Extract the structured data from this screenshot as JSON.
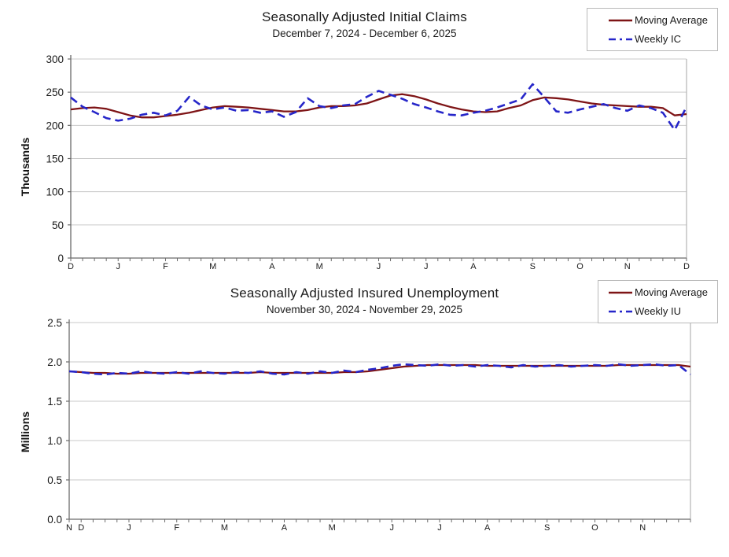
{
  "colors": {
    "moving_average": "#7e1416",
    "weekly": "#2626c9",
    "gridline": "#c9c9c9",
    "axis": "#6b6b6b",
    "plot_border_right": "#b5b5b5",
    "text": "#1a1a1a"
  },
  "chart_data": [
    {
      "type": "line",
      "title": "Seasonally Adjusted Initial Claims",
      "subtitle": "December 7, 2024 - December 6, 2025",
      "ylabel": "Thousands",
      "ylim": [
        0,
        300
      ],
      "yticks": [
        0,
        50,
        100,
        150,
        200,
        250,
        300
      ],
      "ytick_labels": [
        "0",
        "50",
        "100",
        "150",
        "200",
        "250",
        "300"
      ],
      "grid": "horizontal",
      "legend_position": "top-right",
      "weeks_total": 52,
      "x_month_labels": [
        "D",
        "J",
        "F",
        "M",
        "A",
        "M",
        "J",
        "J",
        "A",
        "S",
        "O",
        "N",
        "D"
      ],
      "x_month_week_positions": [
        0,
        4,
        8,
        12,
        17,
        21,
        26,
        30,
        34,
        39,
        43,
        47,
        52
      ],
      "series": [
        {
          "name": "Moving Average",
          "style": "solid",
          "values": [
            224,
            226,
            227,
            225,
            220,
            215,
            212,
            212,
            214,
            216,
            219,
            223,
            227,
            229,
            228,
            227,
            225,
            223,
            221,
            221,
            223,
            227,
            229,
            229,
            230,
            233,
            239,
            245,
            247,
            244,
            239,
            233,
            228,
            224,
            221,
            220,
            221,
            226,
            230,
            238,
            242,
            241,
            239,
            236,
            233,
            231,
            230,
            229,
            228,
            228,
            226,
            215,
            217
          ]
        },
        {
          "name": "Weekly IC",
          "style": "dashed",
          "values": [
            242,
            228,
            220,
            211,
            207,
            210,
            216,
            219,
            215,
            222,
            243,
            230,
            224,
            227,
            222,
            223,
            219,
            221,
            213,
            220,
            241,
            229,
            226,
            230,
            232,
            243,
            252,
            246,
            240,
            232,
            227,
            221,
            216,
            215,
            219,
            222,
            227,
            233,
            239,
            262,
            242,
            221,
            219,
            224,
            228,
            232,
            226,
            222,
            230,
            226,
            219,
            193,
            228
          ]
        }
      ]
    },
    {
      "type": "line",
      "title": "Seasonally Adjusted Insured Unemployment",
      "subtitle": "November 30, 2024 - November 29, 2025",
      "ylabel": "Millions",
      "ylim": [
        0,
        2.5
      ],
      "yticks": [
        0,
        0.5,
        1.0,
        1.5,
        2.0,
        2.5
      ],
      "ytick_labels": [
        "0.0",
        "0.5",
        "1.0",
        "1.5",
        "2.0",
        "2.5"
      ],
      "grid": "horizontal",
      "legend_position": "top-right",
      "weeks_total": 52,
      "x_month_labels": [
        "N",
        "D",
        "J",
        "F",
        "M",
        "A",
        "M",
        "J",
        "J",
        "A",
        "S",
        "O",
        "N"
      ],
      "x_month_week_positions": [
        0,
        1,
        5,
        9,
        13,
        18,
        22,
        27,
        31,
        35,
        40,
        44,
        48
      ],
      "series": [
        {
          "name": "Moving Average",
          "style": "solid",
          "values": [
            1.88,
            1.87,
            1.86,
            1.86,
            1.85,
            1.85,
            1.86,
            1.86,
            1.86,
            1.86,
            1.86,
            1.86,
            1.86,
            1.86,
            1.86,
            1.86,
            1.87,
            1.86,
            1.86,
            1.86,
            1.86,
            1.86,
            1.86,
            1.87,
            1.87,
            1.88,
            1.9,
            1.92,
            1.94,
            1.95,
            1.96,
            1.96,
            1.96,
            1.96,
            1.96,
            1.95,
            1.95,
            1.95,
            1.95,
            1.95,
            1.95,
            1.95,
            1.95,
            1.95,
            1.95,
            1.95,
            1.96,
            1.96,
            1.96,
            1.96,
            1.96,
            1.96,
            1.94
          ]
        },
        {
          "name": "Weekly IU",
          "style": "dashed",
          "values": [
            1.88,
            1.87,
            1.85,
            1.84,
            1.86,
            1.85,
            1.88,
            1.86,
            1.85,
            1.87,
            1.85,
            1.88,
            1.86,
            1.85,
            1.87,
            1.86,
            1.88,
            1.85,
            1.84,
            1.87,
            1.85,
            1.88,
            1.86,
            1.89,
            1.87,
            1.9,
            1.92,
            1.95,
            1.97,
            1.96,
            1.95,
            1.97,
            1.95,
            1.96,
            1.94,
            1.96,
            1.95,
            1.93,
            1.96,
            1.94,
            1.95,
            1.96,
            1.94,
            1.95,
            1.96,
            1.95,
            1.97,
            1.95,
            1.96,
            1.97,
            1.95,
            1.96,
            1.84
          ]
        }
      ]
    }
  ]
}
